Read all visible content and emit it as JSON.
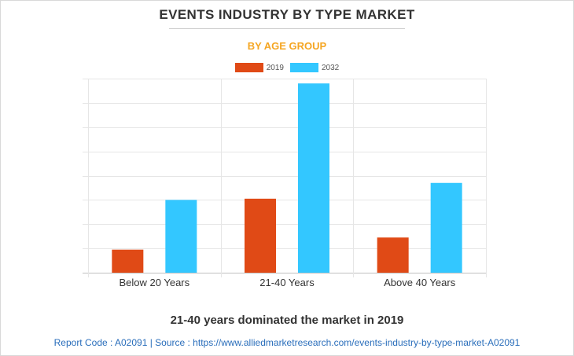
{
  "header": {
    "title": "EVENTS INDUSTRY BY TYPE MARKET",
    "subtitle": "BY AGE GROUP"
  },
  "colors": {
    "subtitle": "#f5a623",
    "series_2019": "#e04a16",
    "series_2032": "#33c7ff"
  },
  "chart_data": {
    "type": "bar",
    "categories": [
      "Below 20 Years",
      "21-40 Years",
      "Above 40 Years"
    ],
    "series": [
      {
        "name": "2019",
        "values": [
          9.5,
          30.5,
          14.5
        ]
      },
      {
        "name": "2032",
        "values": [
          30,
          78,
          37
        ]
      }
    ],
    "ylim": [
      0,
      80
    ],
    "ytick_step": 10,
    "grid": true,
    "legend_position": "top-center",
    "xlabel": "",
    "ylabel": ""
  },
  "caption": "21-40 years dominated the market in 2019",
  "footer": {
    "text": "Report Code : A02091  |  Source : https://www.alliedmarketresearch.com/events-industry-by-type-market-A02091"
  }
}
